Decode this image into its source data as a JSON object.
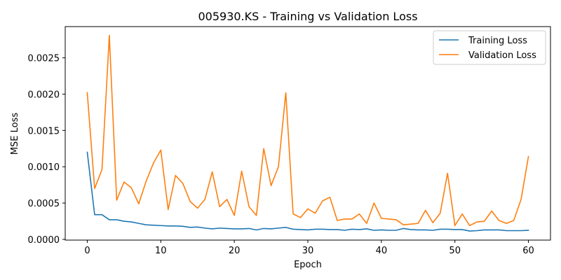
{
  "chart_data": {
    "type": "line",
    "title": "005930.KS - Training vs Validation Loss",
    "xlabel": "Epoch",
    "ylabel": "MSE Loss",
    "xlim": [
      -3,
      63
    ],
    "ylim": [
      -1e-05,
      0.00293
    ],
    "xticks": [
      0,
      10,
      20,
      30,
      40,
      50,
      60
    ],
    "yticks": [
      0.0,
      0.0005,
      0.001,
      0.0015,
      0.002,
      0.0025
    ],
    "ytick_labels": [
      "0.0000",
      "0.0005",
      "0.0010",
      "0.0015",
      "0.0020",
      "0.0025"
    ],
    "xtick_labels": [
      "0",
      "10",
      "20",
      "30",
      "40",
      "50",
      "60"
    ],
    "legend_position": "top-right",
    "grid": false,
    "x": [
      0,
      1,
      2,
      3,
      4,
      5,
      6,
      7,
      8,
      9,
      10,
      11,
      12,
      13,
      14,
      15,
      16,
      17,
      18,
      19,
      20,
      21,
      22,
      23,
      24,
      25,
      26,
      27,
      28,
      29,
      30,
      31,
      32,
      33,
      34,
      35,
      36,
      37,
      38,
      39,
      40,
      41,
      42,
      43,
      44,
      45,
      46,
      47,
      48,
      49,
      50,
      51,
      52,
      53,
      54,
      55,
      56,
      57,
      58,
      59,
      60
    ],
    "series": [
      {
        "name": "Training Loss",
        "color": "#1f77b4",
        "values": [
          0.0012,
          0.00034,
          0.00034,
          0.00027,
          0.00027,
          0.00025,
          0.00024,
          0.00022,
          0.0002,
          0.000195,
          0.00019,
          0.000185,
          0.000185,
          0.00018,
          0.000165,
          0.00017,
          0.000155,
          0.000145,
          0.000155,
          0.00015,
          0.000145,
          0.000145,
          0.00015,
          0.00013,
          0.00015,
          0.000145,
          0.000155,
          0.000165,
          0.00014,
          0.000135,
          0.00013,
          0.00014,
          0.00014,
          0.000135,
          0.000135,
          0.000125,
          0.00014,
          0.000135,
          0.000145,
          0.000125,
          0.00013,
          0.000125,
          0.000125,
          0.00015,
          0.000135,
          0.00013,
          0.00013,
          0.000125,
          0.00014,
          0.00014,
          0.000135,
          0.000135,
          0.000115,
          0.00012,
          0.00013,
          0.00013,
          0.00013,
          0.00012,
          0.00012,
          0.00012,
          0.000125
        ]
      },
      {
        "name": "Validation Loss",
        "color": "#ff7f0e",
        "values": [
          0.00202,
          0.0007,
          0.00096,
          0.00281,
          0.00054,
          0.00079,
          0.00071,
          0.00049,
          0.0008,
          0.00105,
          0.00123,
          0.00041,
          0.00088,
          0.00077,
          0.00052,
          0.00043,
          0.00055,
          0.00093,
          0.00045,
          0.00055,
          0.00033,
          0.00094,
          0.00045,
          0.00033,
          0.00125,
          0.00074,
          0.001,
          0.00202,
          0.00035,
          0.0003,
          0.00042,
          0.00036,
          0.00053,
          0.00058,
          0.00026,
          0.00028,
          0.00028,
          0.00035,
          0.00022,
          0.0005,
          0.00029,
          0.00028,
          0.00027,
          0.0002,
          0.00021,
          0.00022,
          0.0004,
          0.00023,
          0.00036,
          0.00091,
          0.00019,
          0.00035,
          0.00019,
          0.00024,
          0.00025,
          0.00039,
          0.00026,
          0.00022,
          0.00026,
          0.00055,
          0.00114
        ]
      }
    ]
  }
}
